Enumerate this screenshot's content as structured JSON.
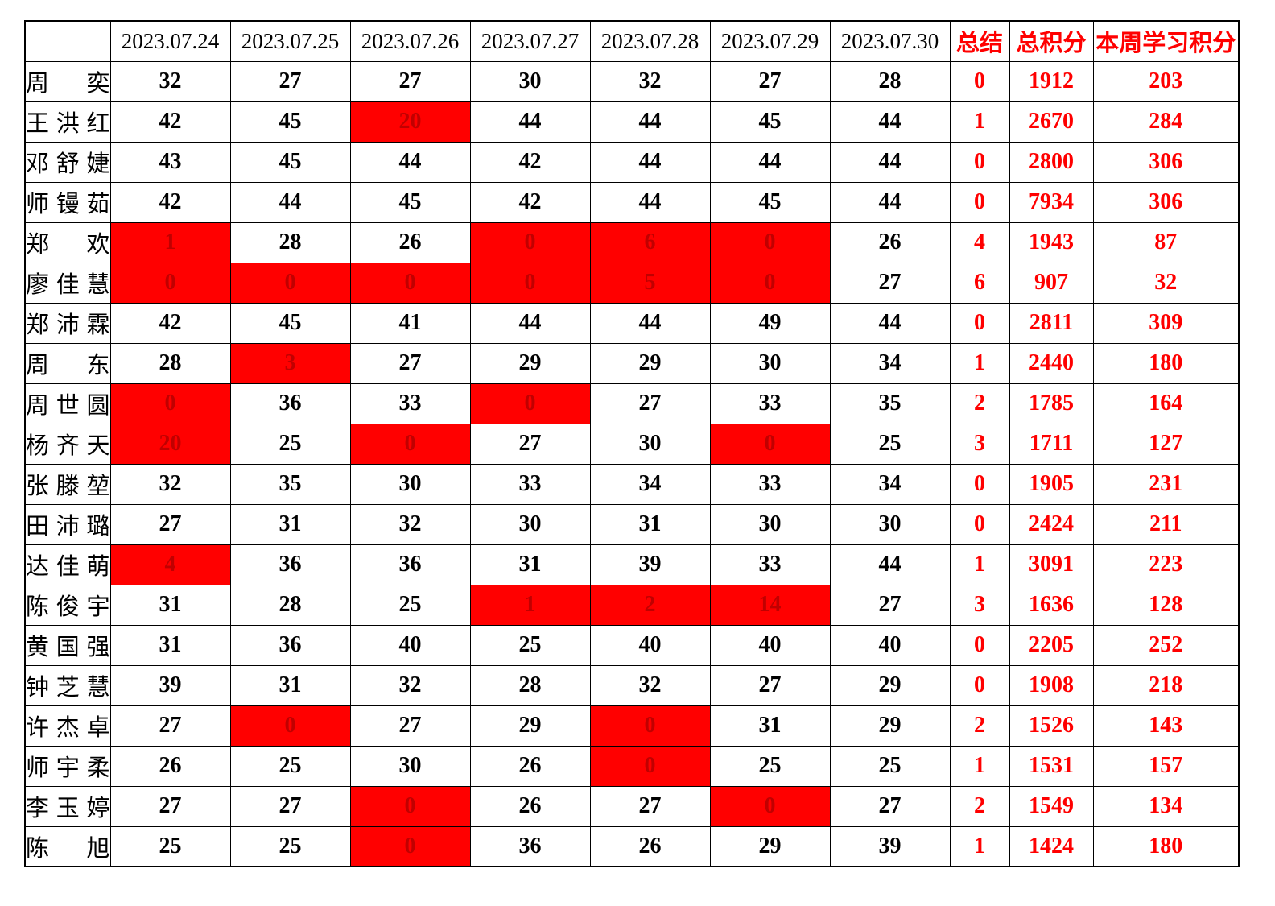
{
  "table": {
    "corner_label": "",
    "date_headers": [
      "2023.07.24",
      "2023.07.25",
      "2023.07.26",
      "2023.07.27",
      "2023.07.28",
      "2023.07.29",
      "2023.07.30"
    ],
    "summary_headers": [
      "总结",
      "总积分",
      "本周学习积分"
    ],
    "colors": {
      "highlight_bg": "#ff0000",
      "highlight_text": "#c00000",
      "accent_text": "#ff0000",
      "grid": "#000000"
    },
    "rows": [
      {
        "name": "周奕",
        "daily": [
          {
            "v": "32",
            "red": false
          },
          {
            "v": "27",
            "red": false
          },
          {
            "v": "27",
            "red": false
          },
          {
            "v": "30",
            "red": false
          },
          {
            "v": "32",
            "red": false
          },
          {
            "v": "27",
            "red": false
          },
          {
            "v": "28",
            "red": false
          }
        ],
        "summary": "0",
        "total": "1912",
        "week": "203"
      },
      {
        "name": "王洪红",
        "daily": [
          {
            "v": "42",
            "red": false
          },
          {
            "v": "45",
            "red": false
          },
          {
            "v": "20",
            "red": true
          },
          {
            "v": "44",
            "red": false
          },
          {
            "v": "44",
            "red": false
          },
          {
            "v": "45",
            "red": false
          },
          {
            "v": "44",
            "red": false
          }
        ],
        "summary": "1",
        "total": "2670",
        "week": "284"
      },
      {
        "name": "邓舒婕",
        "daily": [
          {
            "v": "43",
            "red": false
          },
          {
            "v": "45",
            "red": false
          },
          {
            "v": "44",
            "red": false
          },
          {
            "v": "42",
            "red": false
          },
          {
            "v": "44",
            "red": false
          },
          {
            "v": "44",
            "red": false
          },
          {
            "v": "44",
            "red": false
          }
        ],
        "summary": "0",
        "total": "2800",
        "week": "306"
      },
      {
        "name": "师镘茹",
        "daily": [
          {
            "v": "42",
            "red": false
          },
          {
            "v": "44",
            "red": false
          },
          {
            "v": "45",
            "red": false
          },
          {
            "v": "42",
            "red": false
          },
          {
            "v": "44",
            "red": false
          },
          {
            "v": "45",
            "red": false
          },
          {
            "v": "44",
            "red": false
          }
        ],
        "summary": "0",
        "total": "7934",
        "week": "306"
      },
      {
        "name": "郑欢",
        "daily": [
          {
            "v": "1",
            "red": true
          },
          {
            "v": "28",
            "red": false
          },
          {
            "v": "26",
            "red": false
          },
          {
            "v": "0",
            "red": true
          },
          {
            "v": "6",
            "red": true
          },
          {
            "v": "0",
            "red": true
          },
          {
            "v": "26",
            "red": false
          }
        ],
        "summary": "4",
        "total": "1943",
        "week": "87"
      },
      {
        "name": "廖佳慧",
        "daily": [
          {
            "v": "0",
            "red": true
          },
          {
            "v": "0",
            "red": true
          },
          {
            "v": "0",
            "red": true
          },
          {
            "v": "0",
            "red": true
          },
          {
            "v": "5",
            "red": true
          },
          {
            "v": "0",
            "red": true
          },
          {
            "v": "27",
            "red": false
          }
        ],
        "summary": "6",
        "total": "907",
        "week": "32"
      },
      {
        "name": "郑沛霖",
        "daily": [
          {
            "v": "42",
            "red": false
          },
          {
            "v": "45",
            "red": false
          },
          {
            "v": "41",
            "red": false
          },
          {
            "v": "44",
            "red": false
          },
          {
            "v": "44",
            "red": false
          },
          {
            "v": "49",
            "red": false
          },
          {
            "v": "44",
            "red": false
          }
        ],
        "summary": "0",
        "total": "2811",
        "week": "309"
      },
      {
        "name": "周东",
        "daily": [
          {
            "v": "28",
            "red": false
          },
          {
            "v": "3",
            "red": true
          },
          {
            "v": "27",
            "red": false
          },
          {
            "v": "29",
            "red": false
          },
          {
            "v": "29",
            "red": false
          },
          {
            "v": "30",
            "red": false
          },
          {
            "v": "34",
            "red": false
          }
        ],
        "summary": "1",
        "total": "2440",
        "week": "180"
      },
      {
        "name": "周世圆",
        "daily": [
          {
            "v": "0",
            "red": true
          },
          {
            "v": "36",
            "red": false
          },
          {
            "v": "33",
            "red": false
          },
          {
            "v": "0",
            "red": true
          },
          {
            "v": "27",
            "red": false
          },
          {
            "v": "33",
            "red": false
          },
          {
            "v": "35",
            "red": false
          }
        ],
        "summary": "2",
        "total": "1785",
        "week": "164"
      },
      {
        "name": "杨齐天",
        "daily": [
          {
            "v": "20",
            "red": true
          },
          {
            "v": "25",
            "red": false
          },
          {
            "v": "0",
            "red": true
          },
          {
            "v": "27",
            "red": false
          },
          {
            "v": "30",
            "red": false
          },
          {
            "v": "0",
            "red": true
          },
          {
            "v": "25",
            "red": false
          }
        ],
        "summary": "3",
        "total": "1711",
        "week": "127"
      },
      {
        "name": "张滕堃",
        "daily": [
          {
            "v": "32",
            "red": false
          },
          {
            "v": "35",
            "red": false
          },
          {
            "v": "30",
            "red": false
          },
          {
            "v": "33",
            "red": false
          },
          {
            "v": "34",
            "red": false
          },
          {
            "v": "33",
            "red": false
          },
          {
            "v": "34",
            "red": false
          }
        ],
        "summary": "0",
        "total": "1905",
        "week": "231"
      },
      {
        "name": "田沛璐",
        "daily": [
          {
            "v": "27",
            "red": false
          },
          {
            "v": "31",
            "red": false
          },
          {
            "v": "32",
            "red": false
          },
          {
            "v": "30",
            "red": false
          },
          {
            "v": "31",
            "red": false
          },
          {
            "v": "30",
            "red": false
          },
          {
            "v": "30",
            "red": false
          }
        ],
        "summary": "0",
        "total": "2424",
        "week": "211"
      },
      {
        "name": "达佳萌",
        "daily": [
          {
            "v": "4",
            "red": true
          },
          {
            "v": "36",
            "red": false
          },
          {
            "v": "36",
            "red": false
          },
          {
            "v": "31",
            "red": false
          },
          {
            "v": "39",
            "red": false
          },
          {
            "v": "33",
            "red": false
          },
          {
            "v": "44",
            "red": false
          }
        ],
        "summary": "1",
        "total": "3091",
        "week": "223"
      },
      {
        "name": "陈俊宇",
        "daily": [
          {
            "v": "31",
            "red": false
          },
          {
            "v": "28",
            "red": false
          },
          {
            "v": "25",
            "red": false
          },
          {
            "v": "1",
            "red": true
          },
          {
            "v": "2",
            "red": true
          },
          {
            "v": "14",
            "red": true
          },
          {
            "v": "27",
            "red": false
          }
        ],
        "summary": "3",
        "total": "1636",
        "week": "128"
      },
      {
        "name": "黄国强",
        "daily": [
          {
            "v": "31",
            "red": false
          },
          {
            "v": "36",
            "red": false
          },
          {
            "v": "40",
            "red": false
          },
          {
            "v": "25",
            "red": false
          },
          {
            "v": "40",
            "red": false
          },
          {
            "v": "40",
            "red": false
          },
          {
            "v": "40",
            "red": false
          }
        ],
        "summary": "0",
        "total": "2205",
        "week": "252"
      },
      {
        "name": "钟芝慧",
        "daily": [
          {
            "v": "39",
            "red": false
          },
          {
            "v": "31",
            "red": false
          },
          {
            "v": "32",
            "red": false
          },
          {
            "v": "28",
            "red": false
          },
          {
            "v": "32",
            "red": false
          },
          {
            "v": "27",
            "red": false
          },
          {
            "v": "29",
            "red": false
          }
        ],
        "summary": "0",
        "total": "1908",
        "week": "218"
      },
      {
        "name": "许杰卓",
        "daily": [
          {
            "v": "27",
            "red": false
          },
          {
            "v": "0",
            "red": true
          },
          {
            "v": "27",
            "red": false
          },
          {
            "v": "29",
            "red": false
          },
          {
            "v": "0",
            "red": true
          },
          {
            "v": "31",
            "red": false
          },
          {
            "v": "29",
            "red": false
          }
        ],
        "summary": "2",
        "total": "1526",
        "week": "143"
      },
      {
        "name": "师宇柔",
        "daily": [
          {
            "v": "26",
            "red": false
          },
          {
            "v": "25",
            "red": false
          },
          {
            "v": "30",
            "red": false
          },
          {
            "v": "26",
            "red": false
          },
          {
            "v": "0",
            "red": true
          },
          {
            "v": "25",
            "red": false
          },
          {
            "v": "25",
            "red": false
          }
        ],
        "summary": "1",
        "total": "1531",
        "week": "157"
      },
      {
        "name": "李玉婷",
        "daily": [
          {
            "v": "27",
            "red": false
          },
          {
            "v": "27",
            "red": false
          },
          {
            "v": "0",
            "red": true
          },
          {
            "v": "26",
            "red": false
          },
          {
            "v": "27",
            "red": false
          },
          {
            "v": "0",
            "red": true
          },
          {
            "v": "27",
            "red": false
          }
        ],
        "summary": "2",
        "total": "1549",
        "week": "134"
      },
      {
        "name": "陈旭",
        "daily": [
          {
            "v": "25",
            "red": false
          },
          {
            "v": "25",
            "red": false
          },
          {
            "v": "0",
            "red": true
          },
          {
            "v": "36",
            "red": false
          },
          {
            "v": "26",
            "red": false
          },
          {
            "v": "29",
            "red": false
          },
          {
            "v": "39",
            "red": false
          }
        ],
        "summary": "1",
        "total": "1424",
        "week": "180"
      }
    ]
  }
}
